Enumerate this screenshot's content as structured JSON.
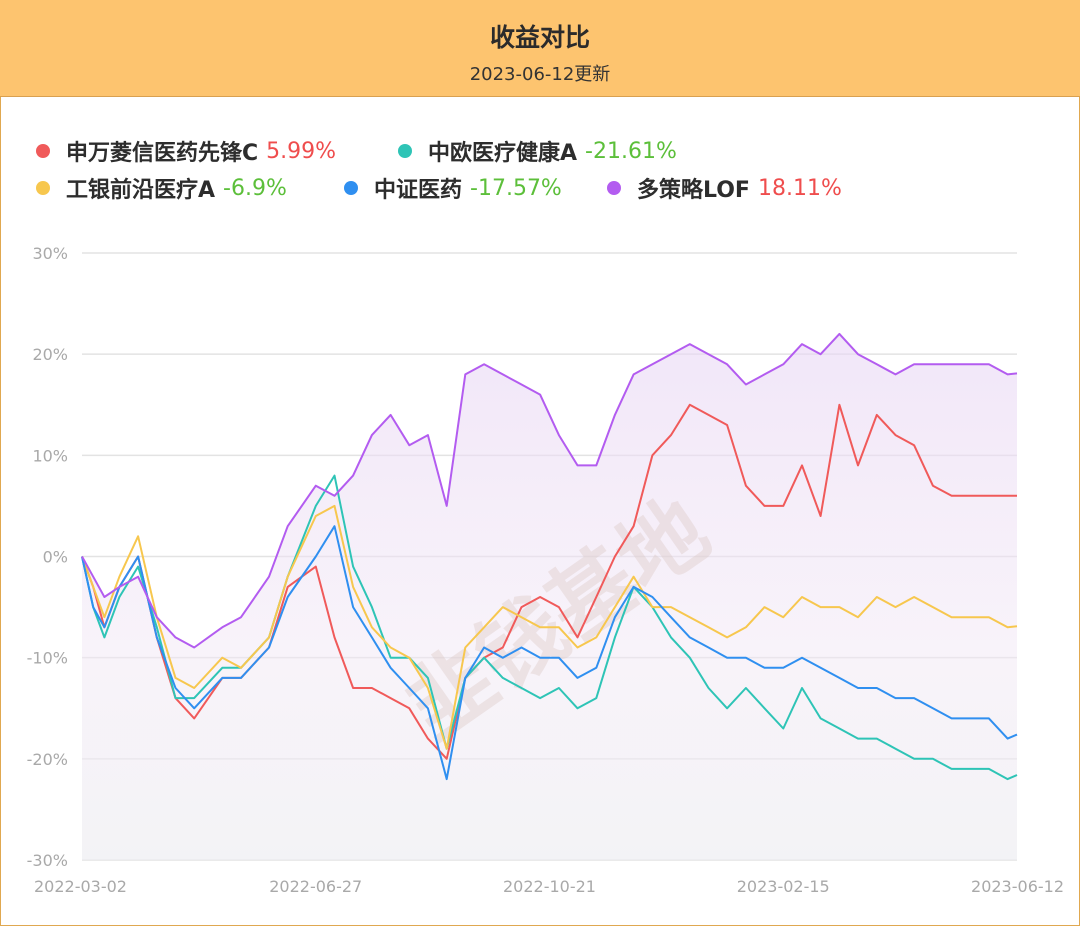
{
  "header": {
    "title": "收益对比",
    "subtitle": "2023-06-12更新"
  },
  "legend": [
    {
      "name": "申万菱信医药先锋C",
      "value": "5.99%",
      "color": "#f05a5a",
      "sign": "pos"
    },
    {
      "name": "中欧医疗健康A",
      "value": "-21.61%",
      "color": "#2ec4b6",
      "sign": "neg"
    },
    {
      "name": "工银前沿医疗A",
      "value": "-6.9%",
      "color": "#f7c74e",
      "sign": "neg"
    },
    {
      "name": "中证医药",
      "value": "-17.57%",
      "color": "#2f8ff0",
      "sign": "neg"
    },
    {
      "name": "多策略LOF",
      "value": "18.11%",
      "color": "#b35cf0",
      "sign": "pos"
    }
  ],
  "watermark": "韭钱基地",
  "chart_data": {
    "type": "line",
    "x_ticks": [
      "2022-03-02",
      "2022-06-27",
      "2022-10-21",
      "2023-02-15",
      "2023-06-12"
    ],
    "y_ticks": [
      "30%",
      "20%",
      "10%",
      "0%",
      "-10%",
      "-20%",
      "-30%"
    ],
    "ylim": [
      -30,
      30
    ],
    "grid": true,
    "x": [
      0,
      0.012,
      0.024,
      0.04,
      0.06,
      0.08,
      0.1,
      0.12,
      0.15,
      0.17,
      0.2,
      0.22,
      0.25,
      0.27,
      0.29,
      0.31,
      0.33,
      0.35,
      0.37,
      0.39,
      0.41,
      0.43,
      0.45,
      0.47,
      0.49,
      0.51,
      0.53,
      0.55,
      0.57,
      0.59,
      0.61,
      0.63,
      0.65,
      0.67,
      0.69,
      0.71,
      0.73,
      0.75,
      0.77,
      0.79,
      0.81,
      0.83,
      0.85,
      0.87,
      0.89,
      0.91,
      0.93,
      0.95,
      0.97,
      0.99,
      1.0
    ],
    "series": [
      {
        "name": "申万菱信医药先锋C",
        "color": "#f05a5a",
        "values": [
          0,
          -3,
          -7,
          -3,
          0,
          -8,
          -14,
          -16,
          -12,
          -12,
          -9,
          -3,
          -1,
          -8,
          -13,
          -13,
          -14,
          -15,
          -18,
          -20,
          -12,
          -10,
          -9,
          -5,
          -4,
          -5,
          -8,
          -4,
          0,
          3,
          10,
          12,
          15,
          14,
          13,
          7,
          5,
          5,
          9,
          4,
          15,
          9,
          14,
          12,
          11,
          7,
          6,
          6,
          6,
          6,
          6
        ]
      },
      {
        "name": "中欧医疗健康A",
        "color": "#2ec4b6",
        "values": [
          0,
          -5,
          -8,
          -4,
          -1,
          -7,
          -14,
          -14,
          -11,
          -11,
          -8,
          -2,
          5,
          8,
          -1,
          -5,
          -10,
          -10,
          -12,
          -19,
          -12,
          -10,
          -12,
          -13,
          -14,
          -13,
          -15,
          -14,
          -8,
          -3,
          -5,
          -8,
          -10,
          -13,
          -15,
          -13,
          -15,
          -17,
          -13,
          -16,
          -17,
          -18,
          -18,
          -19,
          -20,
          -20,
          -21,
          -21,
          -21,
          -22,
          -21.6
        ]
      },
      {
        "name": "工银前沿医疗A",
        "color": "#f7c74e",
        "values": [
          0,
          -3,
          -6,
          -2,
          2,
          -6,
          -12,
          -13,
          -10,
          -11,
          -8,
          -2,
          4,
          5,
          -3,
          -7,
          -9,
          -10,
          -13,
          -19,
          -9,
          -7,
          -5,
          -6,
          -7,
          -7,
          -9,
          -8,
          -5,
          -2,
          -5,
          -5,
          -6,
          -7,
          -8,
          -7,
          -5,
          -6,
          -4,
          -5,
          -5,
          -6,
          -4,
          -5,
          -4,
          -5,
          -6,
          -6,
          -6,
          -7,
          -6.9
        ]
      },
      {
        "name": "中证医药",
        "color": "#2f8ff0",
        "values": [
          0,
          -5,
          -7,
          -3,
          0,
          -8,
          -13,
          -15,
          -12,
          -12,
          -9,
          -4,
          0,
          3,
          -5,
          -8,
          -11,
          -13,
          -15,
          -22,
          -12,
          -9,
          -10,
          -9,
          -10,
          -10,
          -12,
          -11,
          -6,
          -3,
          -4,
          -6,
          -8,
          -9,
          -10,
          -10,
          -11,
          -11,
          -10,
          -11,
          -12,
          -13,
          -13,
          -14,
          -14,
          -15,
          -16,
          -16,
          -16,
          -18,
          -17.6
        ]
      },
      {
        "name": "多策略LOF",
        "color": "#b35cf0",
        "values": [
          0,
          -2,
          -4,
          -3,
          -2,
          -6,
          -8,
          -9,
          -7,
          -6,
          -2,
          3,
          7,
          6,
          8,
          12,
          14,
          11,
          12,
          5,
          18,
          19,
          18,
          17,
          16,
          12,
          9,
          9,
          14,
          18,
          19,
          20,
          21,
          20,
          19,
          17,
          18,
          19,
          21,
          20,
          22,
          20,
          19,
          18,
          19,
          19,
          19,
          19,
          19,
          18,
          18.1
        ]
      }
    ]
  }
}
